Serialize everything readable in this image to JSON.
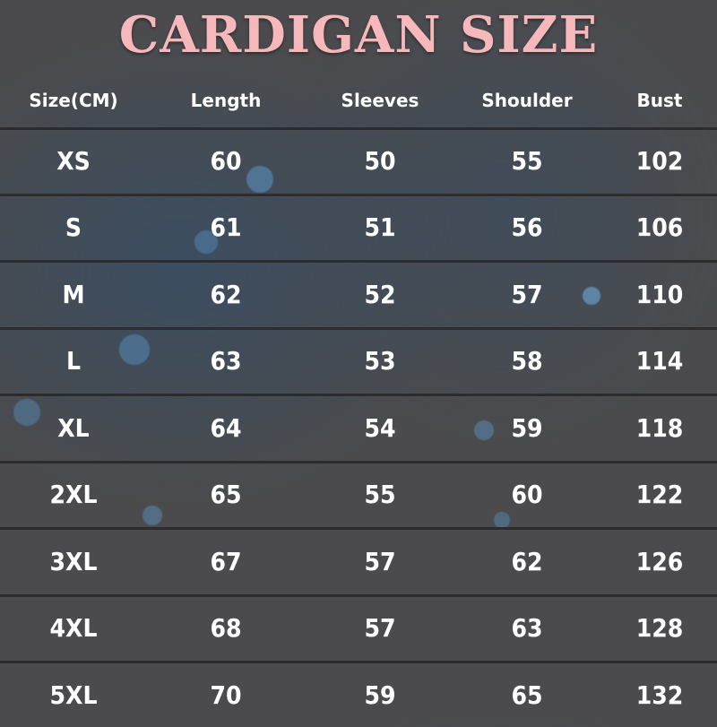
{
  "title": "CARDIGAN SIZE",
  "headers": [
    "Size(CM)",
    "Length",
    "Sleeves",
    "Shoulder",
    "Bust"
  ],
  "rows": [
    [
      "XS",
      "60",
      "50",
      "55",
      "102"
    ],
    [
      "S",
      "61",
      "51",
      "56",
      "106"
    ],
    [
      "M",
      "62",
      "52",
      "57",
      "110"
    ],
    [
      "L",
      "63",
      "53",
      "58",
      "114"
    ],
    [
      "XL",
      "64",
      "54",
      "59",
      "118"
    ],
    [
      "2XL",
      "65",
      "55",
      "60",
      "122"
    ],
    [
      "3XL",
      "67",
      "57",
      "62",
      "126"
    ],
    [
      "4XL",
      "68",
      "57",
      "63",
      "128"
    ],
    [
      "5XL",
      "70",
      "59",
      "65",
      "132"
    ]
  ],
  "colors": {
    "title": "#f6b8bb",
    "background": "#4b4b4d",
    "text": "#ffffff"
  }
}
